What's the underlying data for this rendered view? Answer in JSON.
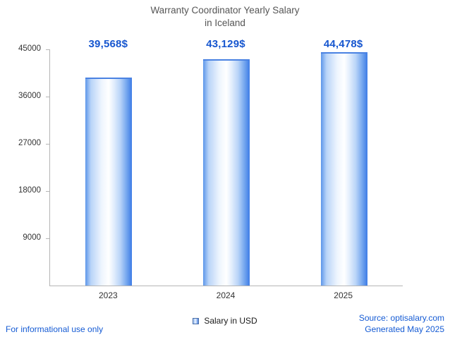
{
  "title": {
    "line1": "Warranty Coordinator Yearly Salary",
    "line2": "in Iceland"
  },
  "legend": {
    "label": "Salary in USD"
  },
  "footer": {
    "left": "For informational use only",
    "source": "Source: optisalary.com",
    "generated": "Generated May 2025"
  },
  "colors": {
    "value_label_blue": "#1656cf",
    "footer_blue": "#155bd4",
    "bar_edge_blue": "#3d7ce6",
    "bar_light_blue": "#b9d4f8",
    "axis_gray": "#b5b5b5",
    "title_gray": "#555555"
  },
  "chart_data": {
    "type": "bar",
    "title": "Warranty Coordinator Yearly Salary in Iceland",
    "categories": [
      "2023",
      "2024",
      "2025"
    ],
    "values": [
      39568,
      43129,
      44478
    ],
    "value_labels": [
      "39,568$",
      "43,129$",
      "44,478$"
    ],
    "series": [
      {
        "name": "Salary in USD",
        "values": [
          39568,
          43129,
          44478
        ]
      }
    ],
    "xlabel": "",
    "ylabel": "",
    "ylim": [
      0,
      45000
    ],
    "yticks": [
      9000,
      18000,
      27000,
      36000,
      45000
    ],
    "grid": false,
    "legend_position": "bottom"
  }
}
